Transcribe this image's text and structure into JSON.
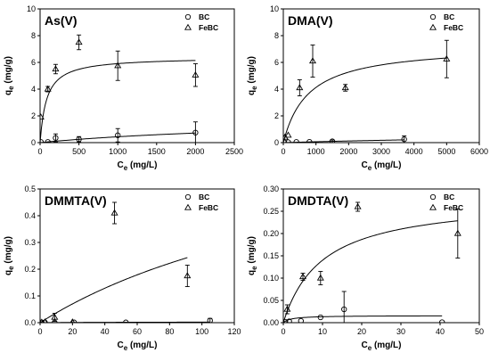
{
  "chart_data": [
    {
      "type": "scatter",
      "title": "As(V)",
      "xlabel_main": "C",
      "xlabel_sub": "e",
      "xlabel_unit": " (mg/L)",
      "ylabel_main": "q",
      "ylabel_sub": "e",
      "ylabel_unit": " (mg/g)",
      "xlim": [
        0,
        2500
      ],
      "ylim": [
        0,
        10
      ],
      "xticks": [
        0,
        500,
        1000,
        1500,
        2000,
        2500
      ],
      "yticks": [
        0,
        2,
        4,
        6,
        8,
        10
      ],
      "legend_position": "top-right",
      "series": [
        {
          "name": "BC",
          "marker": "circle",
          "points": [
            {
              "x": 10,
              "y": 0.05,
              "err": 0
            },
            {
              "x": 100,
              "y": 0.05,
              "err": 0
            },
            {
              "x": 200,
              "y": 0.35,
              "err": 0.3
            },
            {
              "x": 500,
              "y": 0.25,
              "err": 0.2
            },
            {
              "x": 1000,
              "y": 0.55,
              "err": 0.5
            },
            {
              "x": 2000,
              "y": 0.75,
              "err": 0.8
            }
          ],
          "fit": {
            "qmax": 2.0,
            "K": 0.00028
          }
        },
        {
          "name": "FeBC",
          "marker": "triangle",
          "points": [
            {
              "x": 10,
              "y": 1.9,
              "err": 0
            },
            {
              "x": 100,
              "y": 4.0,
              "err": 0.2
            },
            {
              "x": 200,
              "y": 5.5,
              "err": 0.35
            },
            {
              "x": 500,
              "y": 7.5,
              "err": 0.55
            },
            {
              "x": 1000,
              "y": 5.75,
              "err": 1.1
            },
            {
              "x": 2000,
              "y": 5.05,
              "err": 0.85
            }
          ],
          "fit": {
            "qmax": 6.4,
            "K": 0.012
          }
        }
      ]
    },
    {
      "type": "scatter",
      "title": "DMA(V)",
      "xlabel_main": "C",
      "xlabel_sub": "e",
      "xlabel_unit": " (mg/L)",
      "ylabel_main": "q",
      "ylabel_sub": "e",
      "ylabel_unit": " (mg/g)",
      "xlim": [
        0,
        6000
      ],
      "ylim": [
        0,
        10
      ],
      "xticks": [
        0,
        1000,
        2000,
        3000,
        4000,
        5000,
        6000
      ],
      "yticks": [
        0,
        2,
        4,
        6,
        8,
        10
      ],
      "legend_position": "top-right",
      "series": [
        {
          "name": "BC",
          "marker": "circle",
          "points": [
            {
              "x": 30,
              "y": 0.02,
              "err": 0
            },
            {
              "x": 150,
              "y": 0.03,
              "err": 0
            },
            {
              "x": 400,
              "y": 0.05,
              "err": 0
            },
            {
              "x": 800,
              "y": 0.06,
              "err": 0
            },
            {
              "x": 1500,
              "y": 0.1,
              "err": 0.1
            },
            {
              "x": 3700,
              "y": 0.25,
              "err": 0.25
            }
          ],
          "fit": {
            "qmax": 1.0,
            "K": 7e-05
          }
        },
        {
          "name": "FeBC",
          "marker": "triangle",
          "points": [
            {
              "x": 50,
              "y": 0.4,
              "err": 0
            },
            {
              "x": 150,
              "y": 0.55,
              "err": 0
            },
            {
              "x": 500,
              "y": 4.1,
              "err": 0.6
            },
            {
              "x": 900,
              "y": 6.1,
              "err": 1.2
            },
            {
              "x": 1900,
              "y": 4.1,
              "err": 0.25
            },
            {
              "x": 5000,
              "y": 6.25,
              "err": 1.4
            }
          ],
          "fit": {
            "qmax": 7.3,
            "K": 0.0013
          }
        }
      ]
    },
    {
      "type": "scatter",
      "title": "DMMTA(V)",
      "xlabel_main": "C",
      "xlabel_sub": "e",
      "xlabel_unit": " (mg/L)",
      "ylabel_main": "q",
      "ylabel_sub": "e",
      "ylabel_unit": " (mg/g)",
      "xlim": [
        0,
        120
      ],
      "ylim": [
        0,
        0.5
      ],
      "xticks": [
        0,
        20,
        40,
        60,
        80,
        100,
        120
      ],
      "yticks": [
        0.0,
        0.1,
        0.2,
        0.3,
        0.4,
        0.5
      ],
      "legend_position": "top-right",
      "series": [
        {
          "name": "BC",
          "marker": "circle",
          "points": [
            {
              "x": 1,
              "y": 0.001,
              "err": 0
            },
            {
              "x": 3,
              "y": 0.001,
              "err": 0
            },
            {
              "x": 9,
              "y": 0.001,
              "err": 0
            },
            {
              "x": 21,
              "y": 0.001,
              "err": 0
            },
            {
              "x": 53,
              "y": 0.001,
              "err": 0
            },
            {
              "x": 105,
              "y": 0.008,
              "err": 0.008
            }
          ],
          "fit": {
            "qmax": 0.003,
            "K": 0.02
          }
        },
        {
          "name": "FeBC",
          "marker": "triangle",
          "points": [
            {
              "x": 1,
              "y": 0.001,
              "err": 0
            },
            {
              "x": 3,
              "y": 0.002,
              "err": 0
            },
            {
              "x": 9,
              "y": 0.02,
              "err": 0.015
            },
            {
              "x": 20,
              "y": 0.002,
              "err": 0
            },
            {
              "x": 46,
              "y": 0.41,
              "err": 0.04
            },
            {
              "x": 91,
              "y": 0.175,
              "err": 0.04
            }
          ],
          "fit": {
            "qmax": 0.8,
            "K": 0.0048
          }
        }
      ]
    },
    {
      "type": "scatter",
      "title": "DMDTA(V)",
      "xlabel_main": "C",
      "xlabel_sub": "e",
      "xlabel_unit": " (mg/L)",
      "ylabel_main": "q",
      "ylabel_sub": "e",
      "ylabel_unit": " (mg/g)",
      "xlim": [
        0,
        50
      ],
      "ylim": [
        0,
        0.3
      ],
      "xticks": [
        0,
        10,
        20,
        30,
        40,
        50
      ],
      "yticks": [
        0.0,
        0.05,
        0.1,
        0.15,
        0.2,
        0.25,
        0.3
      ],
      "legend_position": "top-right",
      "series": [
        {
          "name": "BC",
          "marker": "circle",
          "points": [
            {
              "x": 0.5,
              "y": 0.002,
              "err": 0
            },
            {
              "x": 1.5,
              "y": 0.003,
              "err": 0
            },
            {
              "x": 4.5,
              "y": 0.004,
              "err": 0
            },
            {
              "x": 9.5,
              "y": 0.012,
              "err": 0
            },
            {
              "x": 15.5,
              "y": 0.03,
              "err": 0.04
            },
            {
              "x": 40.5,
              "y": 0.001,
              "err": 0
            }
          ],
          "fit": {
            "qmax": 0.016,
            "K": 0.5
          }
        },
        {
          "name": "FeBC",
          "marker": "triangle",
          "points": [
            {
              "x": 1,
              "y": 0.03,
              "err": 0.01
            },
            {
              "x": 5,
              "y": 0.103,
              "err": 0.008
            },
            {
              "x": 9.5,
              "y": 0.1,
              "err": 0.015
            },
            {
              "x": 19,
              "y": 0.26,
              "err": 0.01
            },
            {
              "x": 44.5,
              "y": 0.2,
              "err": 0.055
            }
          ],
          "fit": {
            "qmax": 0.28,
            "K": 0.1
          }
        }
      ]
    }
  ]
}
